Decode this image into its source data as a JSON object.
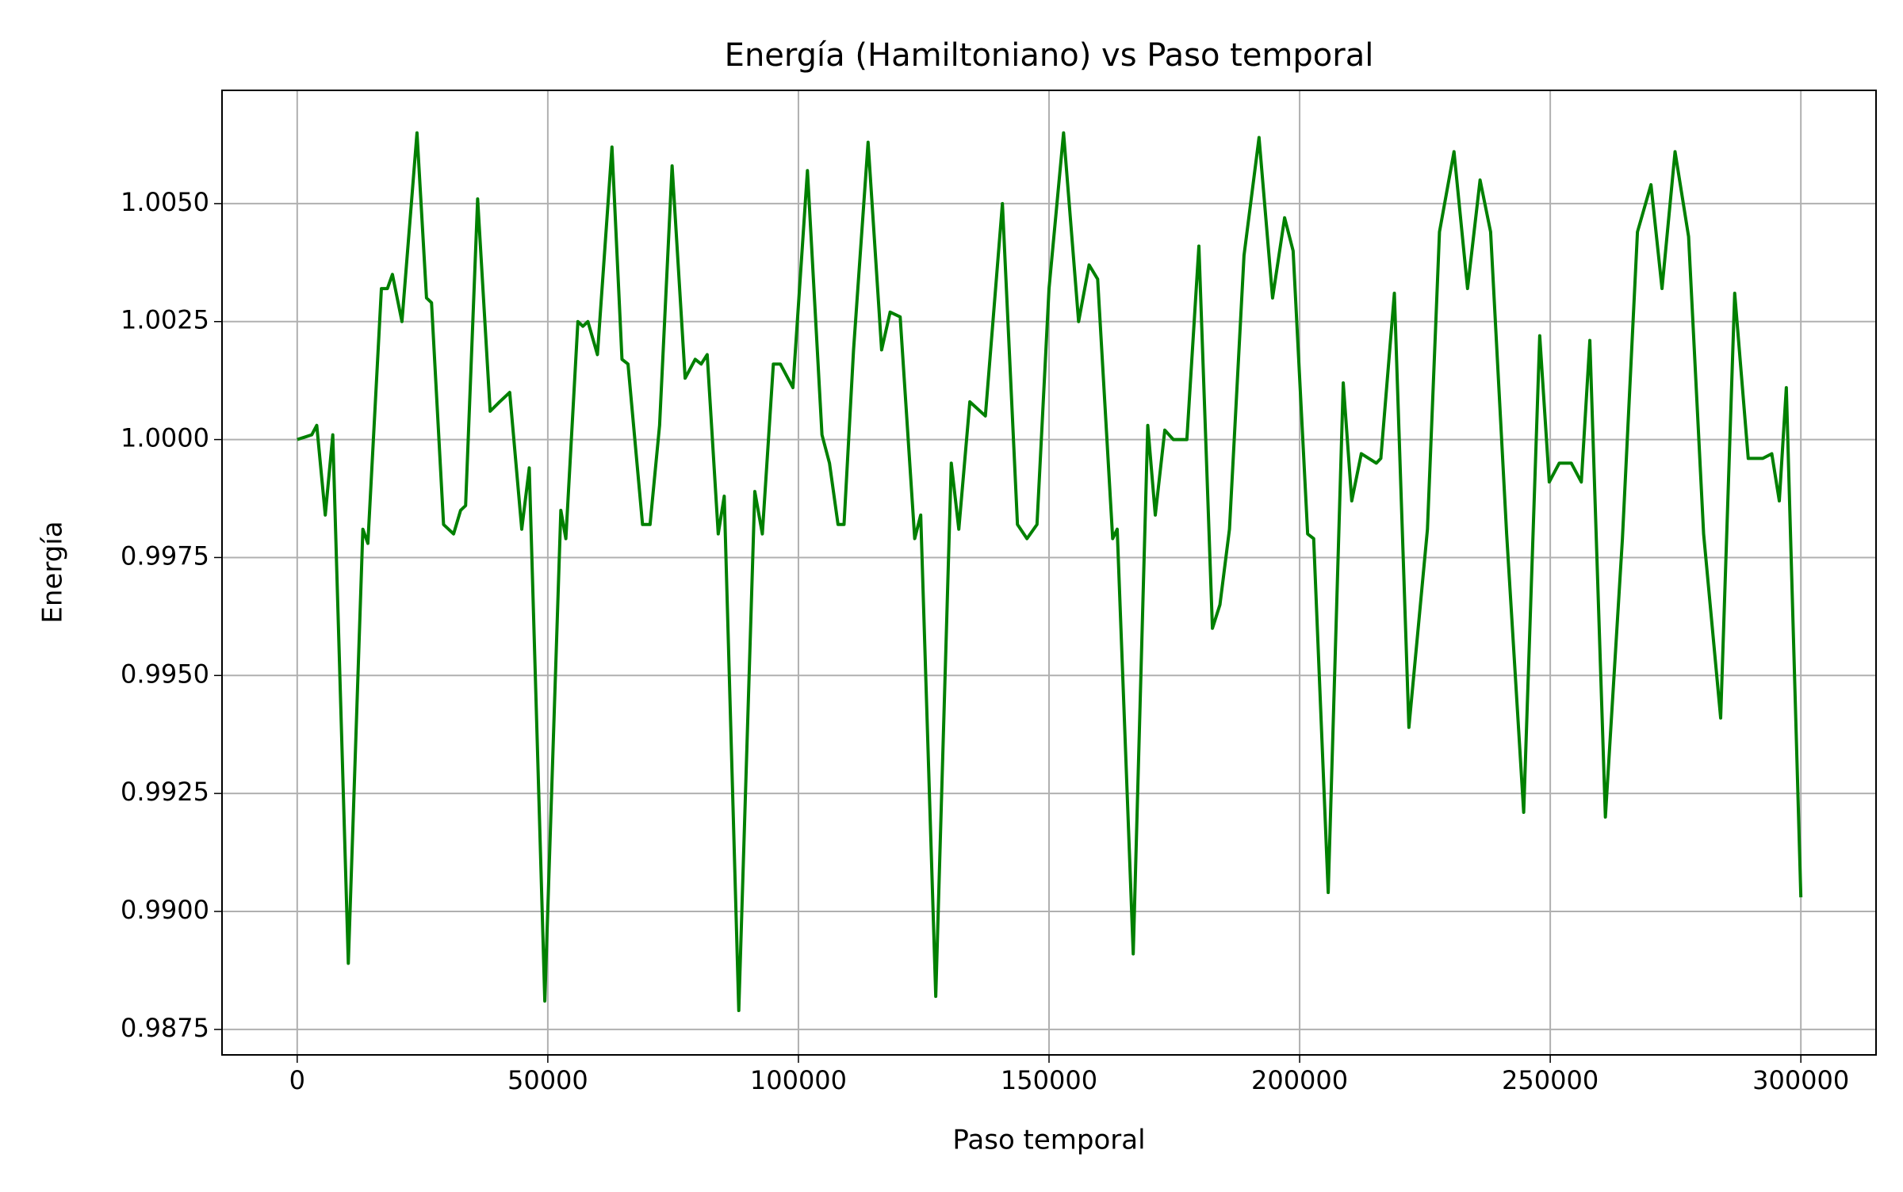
{
  "chart_data": {
    "type": "line",
    "title": "Energía (Hamiltoniano) vs Paso temporal",
    "x_label": "Paso temporal",
    "y_label": "Energía",
    "xlim": [
      -15000,
      315000
    ],
    "ylim": [
      0.98696,
      1.0074
    ],
    "xticks": [
      0,
      50000,
      100000,
      150000,
      200000,
      250000,
      300000
    ],
    "yticks": [
      0.9875,
      {
        "value": 0.99,
        "label": "0.9900"
      },
      0.9925,
      {
        "value": 0.995,
        "label": "0.9950"
      },
      0.9975,
      {
        "value": 1.0,
        "label": "1.0000"
      },
      1.0025,
      {
        "value": 1.005,
        "label": "1.0050"
      }
    ],
    "grid": true,
    "series": [
      {
        "color": "#008000",
        "x": [
          0,
          2900,
          3900,
          5600,
          7100,
          10200,
          13100,
          14100,
          16800,
          18000,
          19000,
          20900,
          23900,
          25800,
          26800,
          29200,
          31200,
          32600,
          33600,
          36000,
          38500,
          40400,
          42400,
          44800,
          46300,
          49400,
          52600,
          53600,
          56000,
          57000,
          58000,
          59900,
          62800,
          64800,
          66000,
          68900,
          70400,
          72300,
          74800,
          77400,
          79400,
          80600,
          81800,
          84000,
          85200,
          88100,
          91300,
          92800,
          95000,
          96400,
          98900,
          101800,
          104700,
          106200,
          107900,
          109100,
          111000,
          113900,
          116600,
          118300,
          120300,
          123200,
          124400,
          127400,
          130500,
          132000,
          134200,
          137300,
          140700,
          143700,
          145600,
          147600,
          150000,
          152900,
          155900,
          158000,
          159700,
          162700,
          163600,
          166800,
          169700,
          171200,
          173100,
          174800,
          177500,
          179900,
          182600,
          184100,
          186000,
          188900,
          191900,
          194600,
          197000,
          198700,
          201600,
          202800,
          205700,
          208700,
          210400,
          212300,
          215300,
          216200,
          218900,
          221800,
          225500,
          227900,
          230800,
          233500,
          236000,
          238100,
          241300,
          244700,
          247900,
          249800,
          251800,
          254200,
          256200,
          257900,
          261000,
          264400,
          267400,
          270100,
          272300,
          274900,
          277600,
          280600,
          284000,
          286800,
          289500,
          292400,
          294200,
          295700,
          297100,
          300000
        ],
        "values": [
          1.0,
          1.0001,
          1.0003,
          0.9984,
          1.0001,
          0.9889,
          0.9981,
          0.9978,
          1.0032,
          1.0032,
          1.0035,
          1.0025,
          1.0065,
          1.003,
          1.0029,
          0.9982,
          0.998,
          0.9985,
          0.9986,
          1.0051,
          1.0006,
          1.0008,
          1.001,
          0.9981,
          0.9994,
          0.9881,
          0.9985,
          0.9979,
          1.0025,
          1.0024,
          1.0025,
          1.0018,
          1.0062,
          1.0017,
          1.0016,
          0.9982,
          0.9982,
          1.0003,
          1.0058,
          1.0013,
          1.0017,
          1.0016,
          1.0018,
          0.998,
          0.9988,
          0.9879,
          0.9989,
          0.998,
          1.0016,
          1.0016,
          1.0011,
          1.0057,
          1.0001,
          0.9995,
          0.9982,
          0.9982,
          1.0019,
          1.0063,
          1.0019,
          1.0027,
          1.0026,
          0.9979,
          0.9984,
          0.9882,
          0.9995,
          0.9981,
          1.0008,
          1.0005,
          1.005,
          0.9982,
          0.9979,
          0.9982,
          1.0032,
          1.0065,
          1.0025,
          1.0037,
          1.0034,
          0.9979,
          0.9981,
          0.9891,
          1.0003,
          0.9984,
          1.0002,
          1.0,
          1.0,
          1.0041,
          0.996,
          0.9965,
          0.9981,
          1.0039,
          1.0064,
          1.003,
          1.0047,
          1.004,
          0.998,
          0.9979,
          0.9904,
          1.0012,
          0.9987,
          0.9997,
          0.9995,
          0.9996,
          1.0031,
          0.9939,
          0.9981,
          1.0044,
          1.0061,
          1.0032,
          1.0055,
          1.0044,
          0.998,
          0.9921,
          1.0022,
          0.9991,
          0.9995,
          0.9995,
          0.9991,
          1.0021,
          0.992,
          0.9979,
          1.0044,
          1.0054,
          1.0032,
          1.0061,
          1.0043,
          0.998,
          0.9941,
          1.0031,
          0.9996,
          0.9996,
          0.9997,
          0.9987,
          1.0011,
          0.9903
        ]
      }
    ]
  }
}
